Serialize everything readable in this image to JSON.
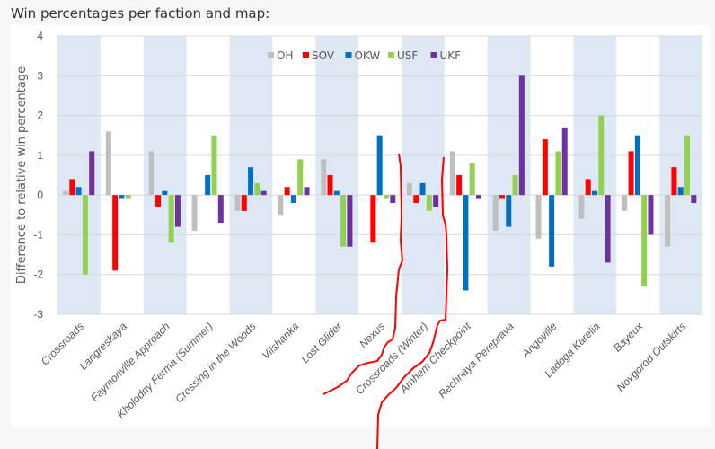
{
  "header": {
    "title": "Win percentages per faction and map:"
  },
  "chart_data": {
    "type": "bar",
    "title": "",
    "xlabel": "",
    "ylabel": "Difference to relative win percentage",
    "ylim": [
      -3,
      4
    ],
    "yticks": [
      4,
      3,
      2,
      1,
      0,
      -1,
      -2,
      -3
    ],
    "grid": true,
    "legend_position": "top-right",
    "categories": [
      "Crossroads",
      "Langreskaya",
      "Faymonville Approach",
      "Kholodny Ferma (Summer)",
      "Crossing in the Woods",
      "Vilshanka",
      "Lost Glider",
      "Nexus",
      "Crossroads (Winter)",
      "Arnhem Checkpoint",
      "Rechnaya Pereprava",
      "Angoville",
      "Ladoga Karelia",
      "Bayeux",
      "Novgorod Outskirts"
    ],
    "series": [
      {
        "name": "OH",
        "color": "#bfbfbf",
        "values": [
          0.1,
          1.6,
          1.1,
          -0.9,
          -0.4,
          -0.5,
          0.9,
          0,
          0.3,
          1.1,
          -0.9,
          -1.1,
          -0.6,
          -0.4,
          -1.3
        ]
      },
      {
        "name": "SOV",
        "color": "#ff0000",
        "values": [
          0.4,
          -1.9,
          -0.3,
          0,
          -0.4,
          0.2,
          0.5,
          -1.2,
          -0.2,
          0.5,
          -0.1,
          1.4,
          0.4,
          1.1,
          0.7
        ]
      },
      {
        "name": "OKW",
        "color": "#0070c0",
        "values": [
          0.2,
          -0.1,
          0.1,
          0.5,
          0.7,
          -0.2,
          0.1,
          1.5,
          0.3,
          -2.4,
          -0.8,
          -1.8,
          0.1,
          1.5,
          0.2
        ]
      },
      {
        "name": "USF",
        "color": "#92d050",
        "values": [
          -2.0,
          -0.1,
          -1.2,
          1.5,
          0.3,
          0.9,
          -1.3,
          -0.1,
          -0.4,
          0.8,
          0.5,
          1.1,
          2.0,
          -2.3,
          1.5
        ]
      },
      {
        "name": "UKF",
        "color": "#7030a0",
        "values": [
          1.1,
          0,
          -0.8,
          -0.7,
          0.1,
          0.2,
          -1.3,
          -0.2,
          -0.3,
          -0.1,
          3.0,
          1.7,
          -1.7,
          -1.0,
          -0.2
        ]
      }
    ],
    "band_color": "#dde8f4",
    "annotation_color": "#ff0000"
  }
}
